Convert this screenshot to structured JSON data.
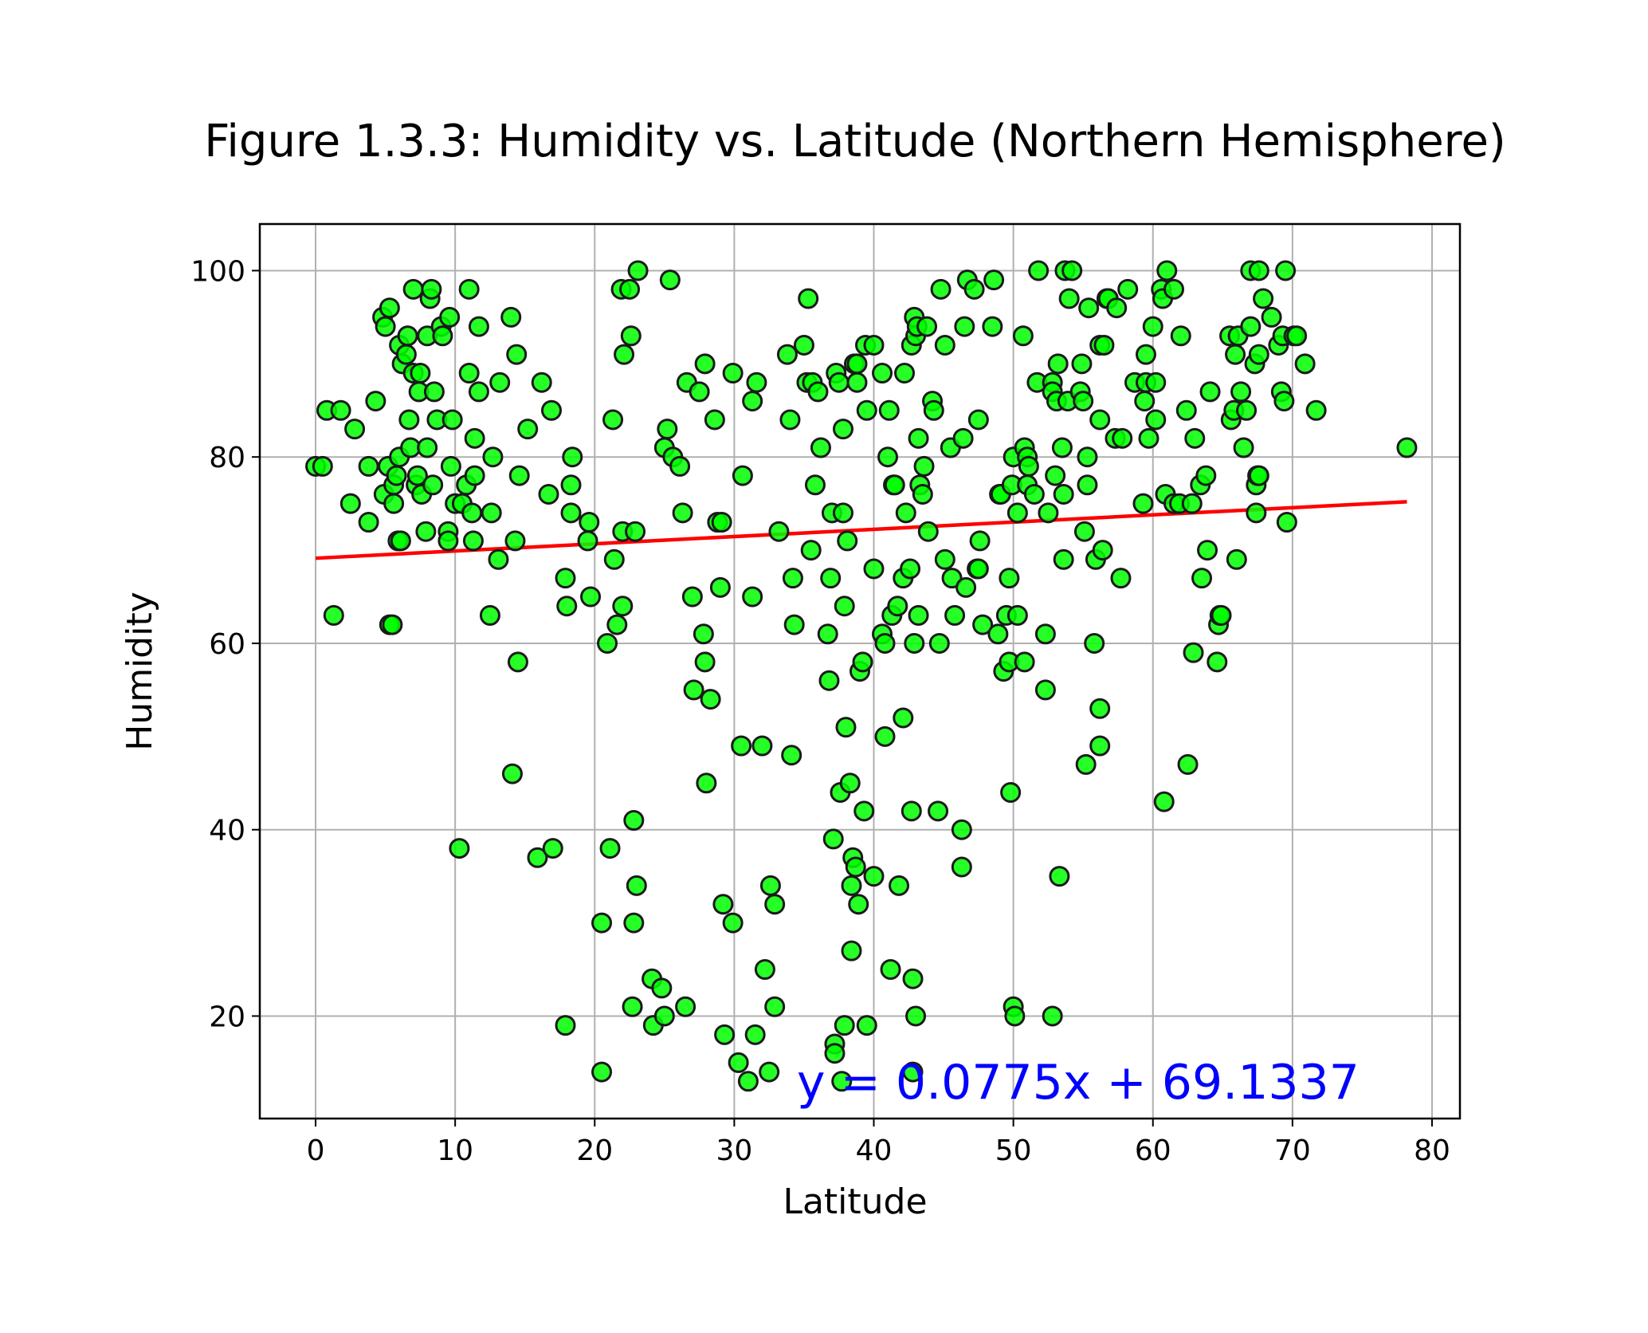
{
  "chart_data": {
    "type": "scatter",
    "title": "Figure 1.3.3: Humidity vs. Latitude (Northern Hemisphere)",
    "xlabel": "Latitude",
    "ylabel": "Humidity",
    "xlim": [
      -4,
      82
    ],
    "ylim": [
      9,
      105
    ],
    "xticks": [
      0,
      10,
      20,
      30,
      40,
      50,
      60,
      70,
      80
    ],
    "yticks": [
      20,
      40,
      60,
      80,
      100
    ],
    "grid": true,
    "point_color": "#00ff00",
    "point_edge_color": "#1a1a1a",
    "regression": {
      "slope": 0.0775,
      "intercept": 69.1337,
      "x_range": [
        0,
        78.2
      ],
      "color": "#ff0000",
      "equation": "y = 0.0775x + 69.1337",
      "equation_color": "#0000ff"
    },
    "points": [
      [
        0,
        79
      ],
      [
        0.5,
        79
      ],
      [
        0.8,
        85
      ],
      [
        1.3,
        63
      ],
      [
        1.8,
        85
      ],
      [
        2.5,
        75
      ],
      [
        2.8,
        83
      ],
      [
        3.8,
        73
      ],
      [
        3.8,
        79
      ],
      [
        4.3,
        86
      ],
      [
        4.8,
        95
      ],
      [
        4.9,
        76
      ],
      [
        5.0,
        94
      ],
      [
        5.2,
        79
      ],
      [
        5.3,
        96
      ],
      [
        5.3,
        62
      ],
      [
        5.5,
        62
      ],
      [
        5.6,
        75
      ],
      [
        5.6,
        77
      ],
      [
        5.8,
        78
      ],
      [
        5.9,
        71
      ],
      [
        6.0,
        92
      ],
      [
        6.0,
        80
      ],
      [
        6.1,
        71
      ],
      [
        6.2,
        90
      ],
      [
        6.5,
        91
      ],
      [
        6.6,
        93
      ],
      [
        6.7,
        84
      ],
      [
        6.8,
        81
      ],
      [
        7.0,
        98
      ],
      [
        7.0,
        89
      ],
      [
        7.2,
        77
      ],
      [
        7.3,
        78
      ],
      [
        7.4,
        87
      ],
      [
        7.5,
        89
      ],
      [
        7.6,
        76
      ],
      [
        7.9,
        72
      ],
      [
        8.0,
        81
      ],
      [
        8.0,
        93
      ],
      [
        8.2,
        97
      ],
      [
        8.3,
        98
      ],
      [
        8.4,
        77
      ],
      [
        8.5,
        87
      ],
      [
        8.7,
        84
      ],
      [
        9.0,
        94
      ],
      [
        9.1,
        93
      ],
      [
        9.5,
        72
      ],
      [
        9.5,
        71
      ],
      [
        9.6,
        95
      ],
      [
        9.7,
        79
      ],
      [
        9.8,
        84
      ],
      [
        10.0,
        75
      ],
      [
        10.3,
        38
      ],
      [
        10.5,
        75
      ],
      [
        10.8,
        77
      ],
      [
        11.0,
        98
      ],
      [
        11.0,
        89
      ],
      [
        11.2,
        74
      ],
      [
        11.3,
        71
      ],
      [
        11.4,
        78
      ],
      [
        11.4,
        82
      ],
      [
        11.7,
        87
      ],
      [
        11.7,
        94
      ],
      [
        12.5,
        63
      ],
      [
        12.6,
        74
      ],
      [
        12.7,
        80
      ],
      [
        13.1,
        69
      ],
      [
        13.2,
        88
      ],
      [
        14.0,
        95
      ],
      [
        14.1,
        46
      ],
      [
        14.3,
        71
      ],
      [
        14.4,
        91
      ],
      [
        14.5,
        58
      ],
      [
        14.6,
        78
      ],
      [
        15.2,
        83
      ],
      [
        15.9,
        37
      ],
      [
        16.2,
        88
      ],
      [
        16.7,
        76
      ],
      [
        16.9,
        85
      ],
      [
        17.0,
        38
      ],
      [
        17.9,
        19
      ],
      [
        17.9,
        67
      ],
      [
        18.0,
        64
      ],
      [
        18.3,
        77
      ],
      [
        18.3,
        74
      ],
      [
        18.4,
        80
      ],
      [
        19.5,
        71
      ],
      [
        19.6,
        73
      ],
      [
        19.7,
        65
      ],
      [
        20.5,
        14
      ],
      [
        20.5,
        30
      ],
      [
        20.9,
        60
      ],
      [
        21.1,
        38
      ],
      [
        21.3,
        84
      ],
      [
        21.4,
        69
      ],
      [
        21.6,
        62
      ],
      [
        21.9,
        98
      ],
      [
        22.0,
        64
      ],
      [
        22.0,
        72
      ],
      [
        22.1,
        91
      ],
      [
        22.5,
        98
      ],
      [
        22.6,
        93
      ],
      [
        22.7,
        21
      ],
      [
        22.8,
        41
      ],
      [
        22.8,
        30
      ],
      [
        22.9,
        72
      ],
      [
        23.0,
        34
      ],
      [
        23.1,
        100
      ],
      [
        24.1,
        24
      ],
      [
        24.2,
        19
      ],
      [
        24.8,
        23
      ],
      [
        25.0,
        20
      ],
      [
        25.0,
        81
      ],
      [
        25.2,
        83
      ],
      [
        25.4,
        99
      ],
      [
        25.6,
        80
      ],
      [
        26.1,
        79
      ],
      [
        26.3,
        74
      ],
      [
        26.5,
        21
      ],
      [
        26.6,
        88
      ],
      [
        27.0,
        65
      ],
      [
        27.1,
        55
      ],
      [
        27.5,
        87
      ],
      [
        27.8,
        61
      ],
      [
        27.9,
        58
      ],
      [
        27.9,
        90
      ],
      [
        28.0,
        45
      ],
      [
        28.3,
        54
      ],
      [
        28.6,
        84
      ],
      [
        28.8,
        73
      ],
      [
        29.0,
        66
      ],
      [
        29.1,
        73
      ],
      [
        29.2,
        32
      ],
      [
        29.3,
        18
      ],
      [
        29.9,
        89
      ],
      [
        29.9,
        30
      ],
      [
        30.3,
        15
      ],
      [
        30.5,
        49
      ],
      [
        30.6,
        78
      ],
      [
        31.0,
        13
      ],
      [
        31.3,
        86
      ],
      [
        31.3,
        65
      ],
      [
        31.5,
        18
      ],
      [
        31.6,
        88
      ],
      [
        32.0,
        49
      ],
      [
        32.2,
        25
      ],
      [
        32.5,
        14
      ],
      [
        32.6,
        34
      ],
      [
        32.9,
        21
      ],
      [
        32.9,
        32
      ],
      [
        33.2,
        72
      ],
      [
        33.8,
        91
      ],
      [
        34.0,
        84
      ],
      [
        34.1,
        48
      ],
      [
        34.2,
        67
      ],
      [
        34.3,
        62
      ],
      [
        35.0,
        92
      ],
      [
        35.2,
        88
      ],
      [
        35.3,
        97
      ],
      [
        35.5,
        70
      ],
      [
        35.6,
        88
      ],
      [
        35.8,
        77
      ],
      [
        36.0,
        87
      ],
      [
        36.2,
        81
      ],
      [
        36.7,
        61
      ],
      [
        36.8,
        56
      ],
      [
        36.9,
        67
      ],
      [
        37.0,
        74
      ],
      [
        37.1,
        39
      ],
      [
        37.2,
        17
      ],
      [
        37.2,
        16
      ],
      [
        37.3,
        89
      ],
      [
        37.5,
        88
      ],
      [
        37.6,
        44
      ],
      [
        37.7,
        13
      ],
      [
        37.8,
        83
      ],
      [
        37.8,
        74
      ],
      [
        37.9,
        64
      ],
      [
        37.9,
        19
      ],
      [
        38.0,
        51
      ],
      [
        38.1,
        71
      ],
      [
        38.3,
        45
      ],
      [
        38.4,
        27
      ],
      [
        38.4,
        34
      ],
      [
        38.5,
        37
      ],
      [
        38.6,
        90
      ],
      [
        38.7,
        36
      ],
      [
        38.8,
        90
      ],
      [
        38.8,
        88
      ],
      [
        38.9,
        32
      ],
      [
        39.0,
        57
      ],
      [
        39.2,
        58
      ],
      [
        39.3,
        42
      ],
      [
        39.4,
        92
      ],
      [
        39.5,
        85
      ],
      [
        39.5,
        19
      ],
      [
        40.0,
        92
      ],
      [
        40.0,
        68
      ],
      [
        40.0,
        35
      ],
      [
        40.6,
        89
      ],
      [
        40.6,
        61
      ],
      [
        40.8,
        60
      ],
      [
        40.8,
        50
      ],
      [
        41.0,
        80
      ],
      [
        41.1,
        85
      ],
      [
        41.2,
        25
      ],
      [
        41.3,
        63
      ],
      [
        41.4,
        77
      ],
      [
        41.5,
        77
      ],
      [
        41.7,
        64
      ],
      [
        41.8,
        34
      ],
      [
        42.1,
        67
      ],
      [
        42.1,
        52
      ],
      [
        42.2,
        89
      ],
      [
        42.3,
        74
      ],
      [
        42.6,
        68
      ],
      [
        42.7,
        42
      ],
      [
        42.7,
        92
      ],
      [
        42.8,
        14
      ],
      [
        42.8,
        24
      ],
      [
        42.9,
        60
      ],
      [
        42.9,
        95
      ],
      [
        43.0,
        20
      ],
      [
        43.0,
        93
      ],
      [
        43.1,
        94
      ],
      [
        43.2,
        82
      ],
      [
        43.2,
        63
      ],
      [
        43.3,
        77
      ],
      [
        43.5,
        76
      ],
      [
        43.6,
        79
      ],
      [
        43.8,
        94
      ],
      [
        43.9,
        72
      ],
      [
        44.2,
        86
      ],
      [
        44.3,
        85
      ],
      [
        44.6,
        42
      ],
      [
        44.7,
        60
      ],
      [
        44.8,
        98
      ],
      [
        45.1,
        69
      ],
      [
        45.1,
        92
      ],
      [
        45.5,
        81
      ],
      [
        45.6,
        67
      ],
      [
        45.8,
        63
      ],
      [
        46.3,
        40
      ],
      [
        46.3,
        36
      ],
      [
        46.4,
        82
      ],
      [
        46.5,
        94
      ],
      [
        46.6,
        66
      ],
      [
        46.7,
        99
      ],
      [
        47.2,
        98
      ],
      [
        47.4,
        68
      ],
      [
        47.5,
        68
      ],
      [
        47.5,
        84
      ],
      [
        47.6,
        71
      ],
      [
        47.8,
        62
      ],
      [
        48.5,
        94
      ],
      [
        48.6,
        99
      ],
      [
        48.9,
        61
      ],
      [
        49.0,
        76
      ],
      [
        49.1,
        76
      ],
      [
        49.3,
        57
      ],
      [
        49.5,
        63
      ],
      [
        49.7,
        58
      ],
      [
        49.7,
        67
      ],
      [
        49.8,
        44
      ],
      [
        49.9,
        77
      ],
      [
        50.0,
        21
      ],
      [
        50.0,
        80
      ],
      [
        50.1,
        20
      ],
      [
        50.3,
        74
      ],
      [
        50.3,
        63
      ],
      [
        50.7,
        93
      ],
      [
        50.8,
        58
      ],
      [
        50.8,
        81
      ],
      [
        51.0,
        77
      ],
      [
        51.0,
        80
      ],
      [
        51.1,
        79
      ],
      [
        51.5,
        76
      ],
      [
        51.7,
        88
      ],
      [
        51.8,
        100
      ],
      [
        52.3,
        55
      ],
      [
        52.3,
        61
      ],
      [
        52.5,
        74
      ],
      [
        52.8,
        88
      ],
      [
        52.8,
        87
      ],
      [
        52.8,
        20
      ],
      [
        53.0,
        78
      ],
      [
        53.1,
        86
      ],
      [
        53.2,
        90
      ],
      [
        53.3,
        35
      ],
      [
        53.5,
        81
      ],
      [
        53.6,
        76
      ],
      [
        53.6,
        69
      ],
      [
        53.7,
        100
      ],
      [
        53.9,
        86
      ],
      [
        54.0,
        97
      ],
      [
        54.2,
        100
      ],
      [
        54.8,
        87
      ],
      [
        54.9,
        90
      ],
      [
        55.0,
        86
      ],
      [
        55.1,
        72
      ],
      [
        55.2,
        47
      ],
      [
        55.3,
        80
      ],
      [
        55.3,
        77
      ],
      [
        55.4,
        96
      ],
      [
        55.8,
        60
      ],
      [
        55.9,
        69
      ],
      [
        56.2,
        84
      ],
      [
        56.2,
        53
      ],
      [
        56.2,
        49
      ],
      [
        56.2,
        92
      ],
      [
        56.4,
        70
      ],
      [
        56.5,
        92
      ],
      [
        56.7,
        97
      ],
      [
        56.8,
        97
      ],
      [
        57.3,
        82
      ],
      [
        57.4,
        96
      ],
      [
        57.7,
        67
      ],
      [
        57.8,
        82
      ],
      [
        58.2,
        98
      ],
      [
        58.7,
        88
      ],
      [
        59.3,
        75
      ],
      [
        59.4,
        86
      ],
      [
        59.5,
        88
      ],
      [
        59.5,
        91
      ],
      [
        59.7,
        82
      ],
      [
        60.0,
        94
      ],
      [
        60.2,
        84
      ],
      [
        60.2,
        88
      ],
      [
        60.6,
        98
      ],
      [
        60.7,
        97
      ],
      [
        60.8,
        43
      ],
      [
        60.9,
        76
      ],
      [
        61.0,
        100
      ],
      [
        61.5,
        75
      ],
      [
        61.5,
        98
      ],
      [
        61.9,
        75
      ],
      [
        62.0,
        93
      ],
      [
        62.4,
        85
      ],
      [
        62.5,
        47
      ],
      [
        62.8,
        75
      ],
      [
        62.9,
        59
      ],
      [
        63.0,
        82
      ],
      [
        63.4,
        77
      ],
      [
        63.5,
        67
      ],
      [
        63.8,
        78
      ],
      [
        63.9,
        70
      ],
      [
        64.1,
        87
      ],
      [
        64.6,
        58
      ],
      [
        64.7,
        62
      ],
      [
        64.8,
        63
      ],
      [
        64.9,
        63
      ],
      [
        65.5,
        93
      ],
      [
        65.6,
        84
      ],
      [
        65.8,
        85
      ],
      [
        65.9,
        91
      ],
      [
        66.0,
        69
      ],
      [
        66.1,
        93
      ],
      [
        66.3,
        87
      ],
      [
        66.5,
        81
      ],
      [
        66.7,
        85
      ],
      [
        67.0,
        100
      ],
      [
        67.0,
        94
      ],
      [
        67.3,
        90
      ],
      [
        67.4,
        77
      ],
      [
        67.4,
        74
      ],
      [
        67.5,
        78
      ],
      [
        67.6,
        100
      ],
      [
        67.6,
        91
      ],
      [
        67.6,
        78
      ],
      [
        67.9,
        97
      ],
      [
        68.5,
        95
      ],
      [
        69.0,
        92
      ],
      [
        69.2,
        87
      ],
      [
        69.3,
        93
      ],
      [
        69.4,
        86
      ],
      [
        69.5,
        100
      ],
      [
        69.6,
        73
      ],
      [
        70.1,
        93
      ],
      [
        70.3,
        93
      ],
      [
        70.9,
        90
      ],
      [
        71.7,
        85
      ],
      [
        78.2,
        81
      ]
    ]
  }
}
